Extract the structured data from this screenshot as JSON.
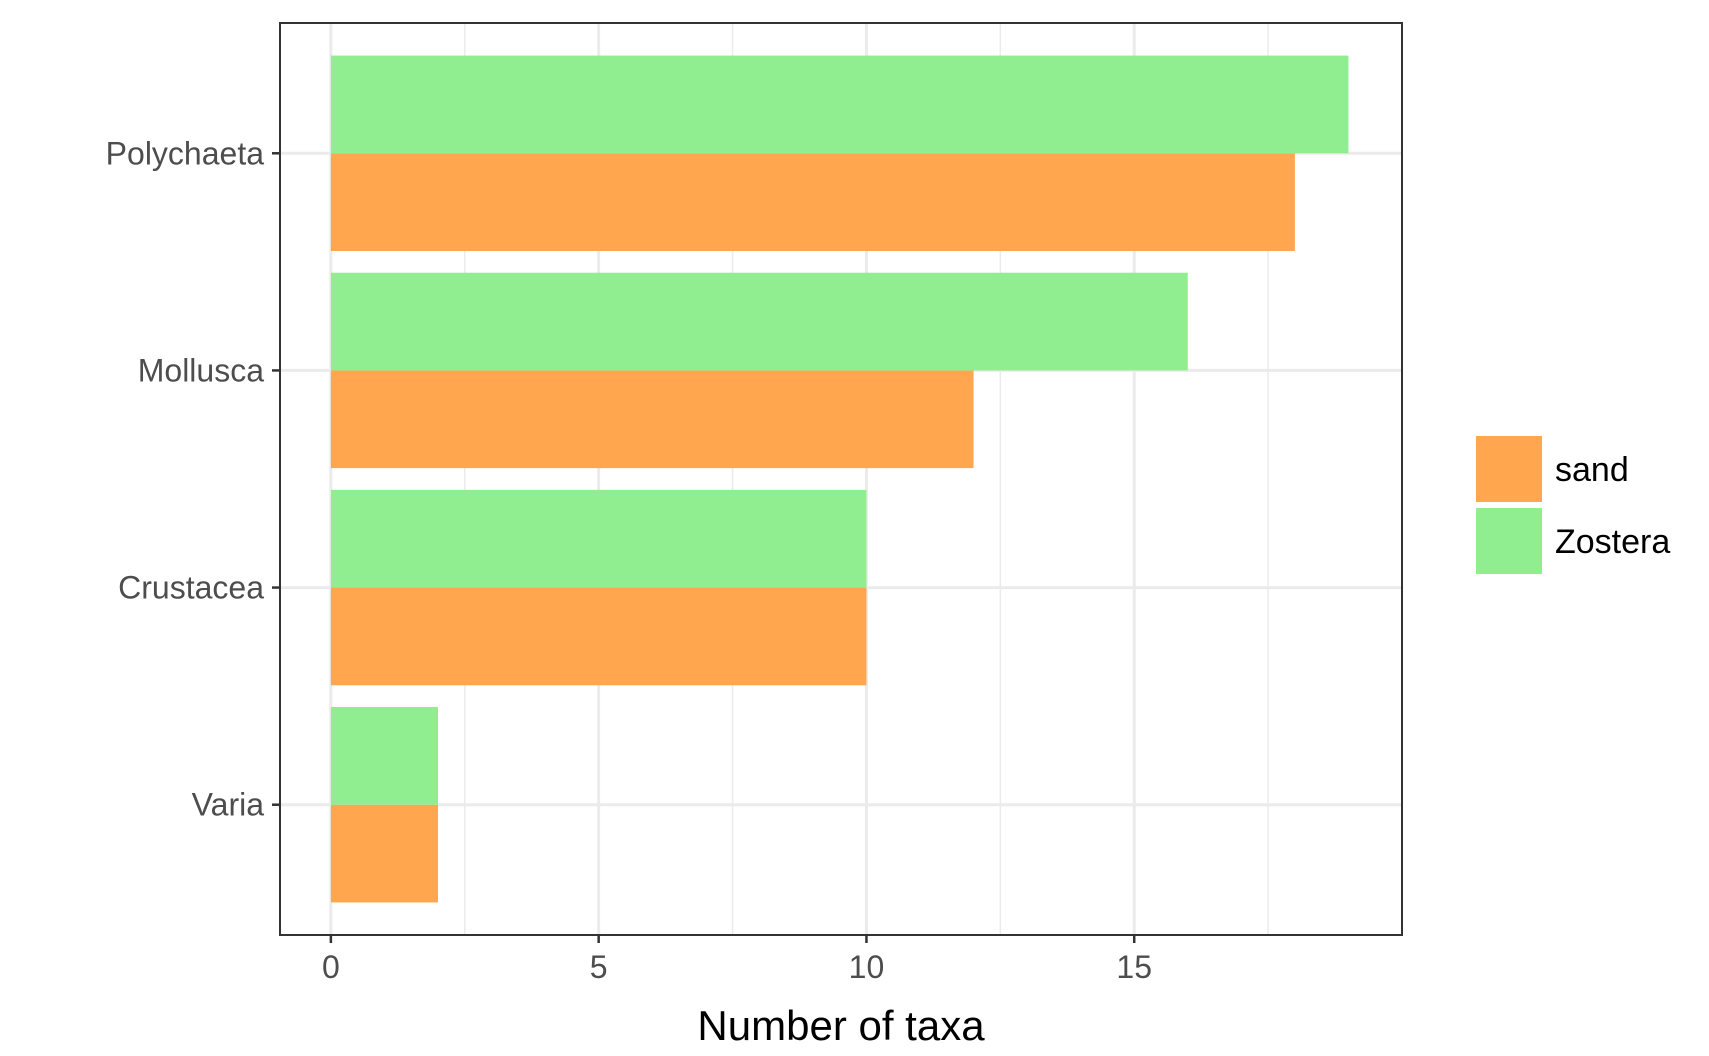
{
  "chart_data": {
    "type": "bar",
    "orientation": "horizontal",
    "categories": [
      "Polychaeta",
      "Mollusca",
      "Crustacea",
      "Varia"
    ],
    "series": [
      {
        "name": "sand",
        "color": "#FFA64F",
        "values": [
          18,
          12,
          10,
          2
        ]
      },
      {
        "name": "Zostera",
        "color": "#90EE90",
        "values": [
          19,
          16,
          10,
          2
        ]
      }
    ],
    "title": "",
    "xlabel": "Number of taxa",
    "ylabel": "",
    "xlim": [
      -0.95,
      20
    ],
    "xticks": [
      0,
      5,
      10,
      15
    ],
    "grid": true,
    "legend_position": "right"
  }
}
